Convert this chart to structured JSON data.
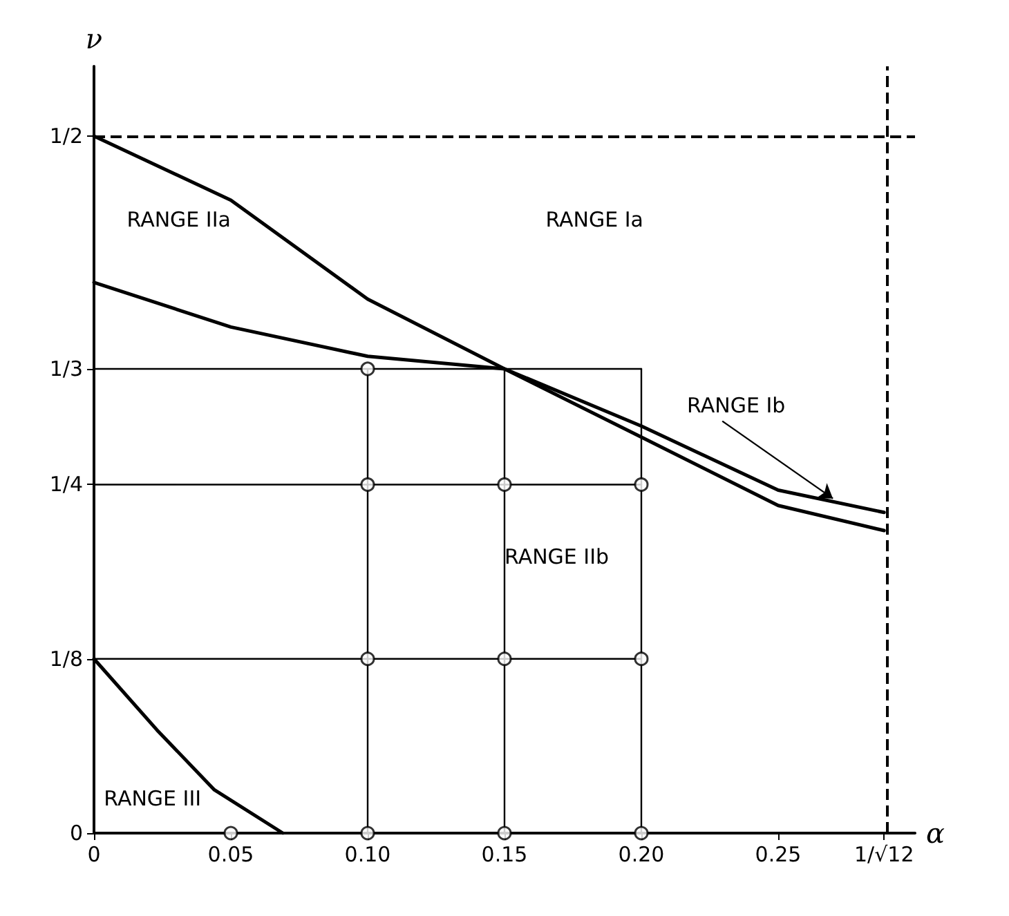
{
  "chart_data": {
    "type": "line",
    "xlabel": "α",
    "ylabel": "ν",
    "xlim": [
      0,
      0.3
    ],
    "ylim": [
      0,
      0.55
    ],
    "xticks": [
      0,
      0.05,
      {
        "value": 0.1,
        "label": "0.10"
      },
      0.15,
      {
        "value": 0.2,
        "label": "0.20"
      },
      0.25,
      {
        "value": 0.2887,
        "label": "1/√12"
      }
    ],
    "yticks": [
      0,
      {
        "value": 0.125,
        "label": "1/8"
      },
      {
        "value": 0.25,
        "label": "1/4"
      },
      {
        "value": 0.333,
        "label": "1/3"
      },
      {
        "value": 0.5,
        "label": "1/2"
      }
    ],
    "grid": false,
    "line_style": "solid",
    "marker": "none",
    "series": [
      {
        "color": "#000000",
        "x": [
          0,
          0.05,
          0.1,
          0.15,
          0.2,
          0.25,
          0.2887
        ],
        "values": [
          0.5,
          0.454,
          0.383,
          0.333,
          0.284,
          0.235,
          0.217
        ]
      },
      {
        "color": "#000000",
        "x": [
          0,
          0.05,
          0.1,
          0.15,
          0.2,
          0.25,
          0.2887
        ],
        "values": [
          0.395,
          0.363,
          0.342,
          0.333,
          0.292,
          0.246,
          0.23
        ]
      },
      {
        "color": "#000000",
        "x": [
          0,
          0.023,
          0.044,
          0.069
        ],
        "values": [
          0.125,
          0.074,
          0.031,
          0
        ]
      },
      {
        "color": "#000000",
        "x": [
          0,
          0.2
        ],
        "values": [
          0.333,
          0.333
        ]
      },
      {
        "color": "#000000",
        "x": [
          0,
          0.2
        ],
        "values": [
          0.25,
          0.25
        ]
      },
      {
        "color": "#000000",
        "x": [
          0,
          0.2
        ],
        "values": [
          0.125,
          0.125
        ]
      },
      {
        "color": "#000000",
        "x": [
          0.1,
          0.1
        ],
        "values": [
          0,
          0.333
        ]
      },
      {
        "color": "#000000",
        "x": [
          0.15,
          0.15
        ],
        "values": [
          0,
          0.333
        ]
      },
      {
        "color": "#000000",
        "x": [
          0.2,
          0.2
        ],
        "values": [
          0,
          0.333
        ]
      },
      {
        "type": "scatter",
        "marker": "circle",
        "color": "#ffffff",
        "x": [
          0.1,
          0.1,
          0.15,
          0.2,
          0.1,
          0.15,
          0.2,
          0.05,
          0.1,
          0.15,
          0.2
        ],
        "values": [
          0.333,
          0.25,
          0.25,
          0.25,
          0.125,
          0.125,
          0.125,
          0,
          0,
          0,
          0
        ]
      }
    ],
    "ref_lines": [
      {
        "axis": "y",
        "value": 0.5,
        "line_style": "dashed",
        "color": "#000000"
      },
      {
        "axis": "x",
        "value": 0.2887,
        "line_style": "dashed",
        "color": "#000000"
      }
    ],
    "annotations": [
      "RANGE Ia",
      "RANGE IIa",
      "RANGE IIb",
      "RANGE III",
      {
        "text": "RANGE Ib",
        "x": 0.27,
        "y": 0.24
      }
    ]
  }
}
